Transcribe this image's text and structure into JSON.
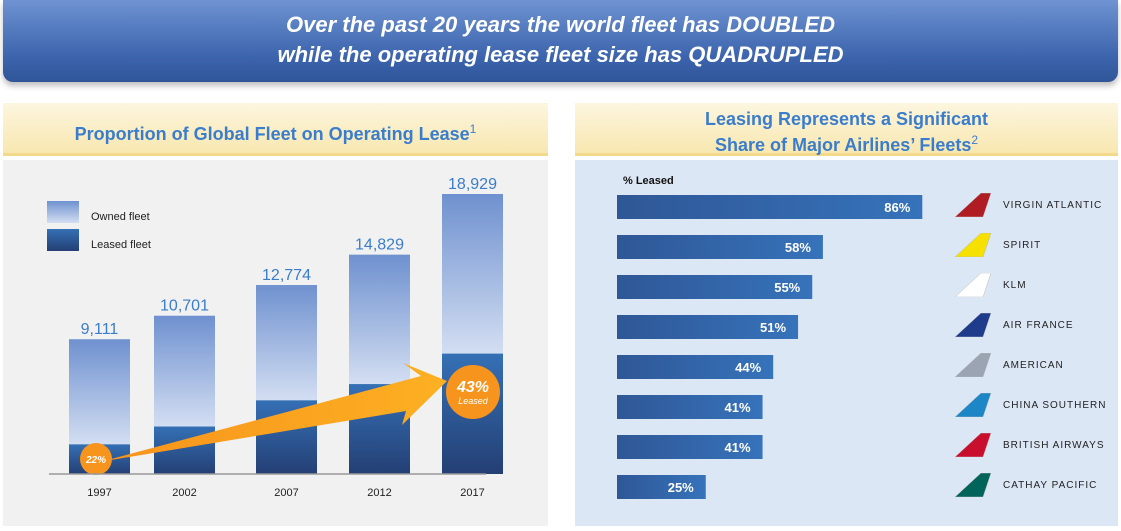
{
  "banner": {
    "line1": "Over the past 20 years the world fleet has DOUBLED",
    "line2": "while the operating lease fleet size has QUADRUPLED"
  },
  "colors": {
    "owned": "#8fa9dc",
    "leased": "#2c4f8c",
    "accent": "#f7941d",
    "header_text": "#3a7dcc"
  },
  "chart_data": [
    {
      "type": "bar",
      "stacked": true,
      "title": "Proportion of Global Fleet on Operating Lease",
      "title_note": "1",
      "categories": [
        "1997",
        "2002",
        "2007",
        "2012",
        "2017"
      ],
      "totals": [
        9111,
        10701,
        12774,
        14829,
        18929
      ],
      "total_labels": [
        "9,111",
        "10,701",
        "12,774",
        "14,829",
        "18,929"
      ],
      "leased_percent": [
        22,
        30,
        39,
        41,
        43
      ],
      "legend": [
        "Owned fleet",
        "Leased fleet"
      ],
      "legend_position": "top-left",
      "annotations": [
        {
          "category": "1997",
          "text": "22%"
        },
        {
          "category": "2017",
          "text": "43%",
          "subtext": "Leased"
        }
      ],
      "ylim": [
        0,
        19000
      ]
    },
    {
      "type": "bar",
      "orientation": "horizontal",
      "title_line1": "Leasing Represents a Significant",
      "title_line2": "Share of Major Airlines’ Fleets",
      "title_note": "2",
      "axis_label": "% Leased",
      "categories": [
        "VIRGIN ATLANTIC",
        "SPIRIT",
        "KLM",
        "AIR FRANCE",
        "AMERICAN",
        "CHINA SOUTHERN",
        "BRITISH AIRWAYS",
        "CATHAY PACIFIC"
      ],
      "values": [
        86,
        58,
        55,
        51,
        44,
        41,
        41,
        25
      ],
      "value_labels": [
        "86%",
        "58%",
        "55%",
        "51%",
        "44%",
        "41%",
        "41%",
        "25%"
      ],
      "tail_colors": [
        "#b01c24",
        "#f5e000",
        "#ffffff",
        "#1f3b8c",
        "#9aa4b3",
        "#1d86c6",
        "#c8102e",
        "#00645a"
      ],
      "xlim": [
        0,
        100
      ]
    }
  ]
}
